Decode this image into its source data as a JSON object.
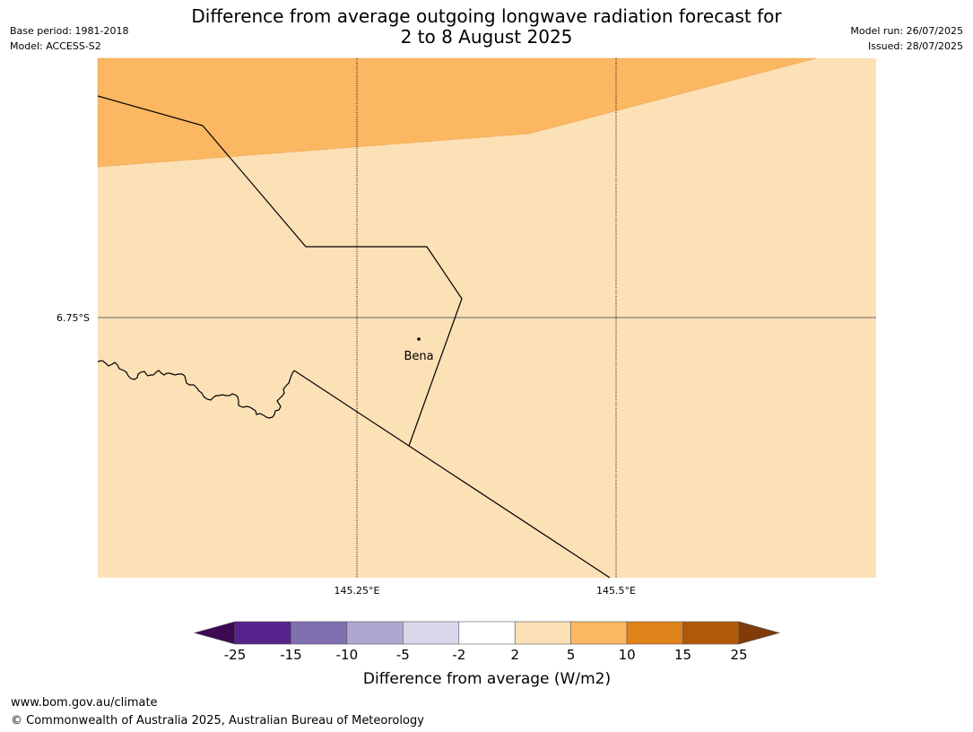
{
  "header": {
    "title_line1": "Difference from average outgoing longwave radiation forecast for",
    "title_line2": "2 to 8 August 2025",
    "base_period": "Base period: 1981-2018",
    "model": "Model: ACCESS-S2",
    "model_run": "Model run: 26/07/2025",
    "issued": "Issued: 28/07/2025"
  },
  "map": {
    "lat_labels": [
      {
        "label": "6.75°S",
        "lat": -6.75
      }
    ],
    "lon_labels": [
      {
        "label": "145.25°E",
        "lon": 145.25
      },
      {
        "label": "145.5°E",
        "lon": 145.5
      }
    ],
    "place": {
      "name": "Bena",
      "lon": 145.31,
      "lat": -6.77
    },
    "fill_colors": {
      "anomaly_2_to_5": "#fce0b6",
      "anomaly_5_to_10": "#fbb762"
    }
  },
  "colorbar": {
    "label": "Difference from average (W/m2)",
    "ticks": [
      "-25",
      "-15",
      "-10",
      "-5",
      "-2",
      "2",
      "5",
      "10",
      "15",
      "25"
    ],
    "colors": [
      "#3e0a54",
      "#57228c",
      "#8170b0",
      "#b0a7d1",
      "#d8d8ea",
      "#ffffff",
      "#fce0b6",
      "#fbb762",
      "#e0821a",
      "#b25908",
      "#7f3b08"
    ]
  },
  "footer": {
    "url": "www.bom.gov.au/climate",
    "copyright": "© Commonwealth of Australia 2025, Australian Bureau of Meteorology"
  }
}
